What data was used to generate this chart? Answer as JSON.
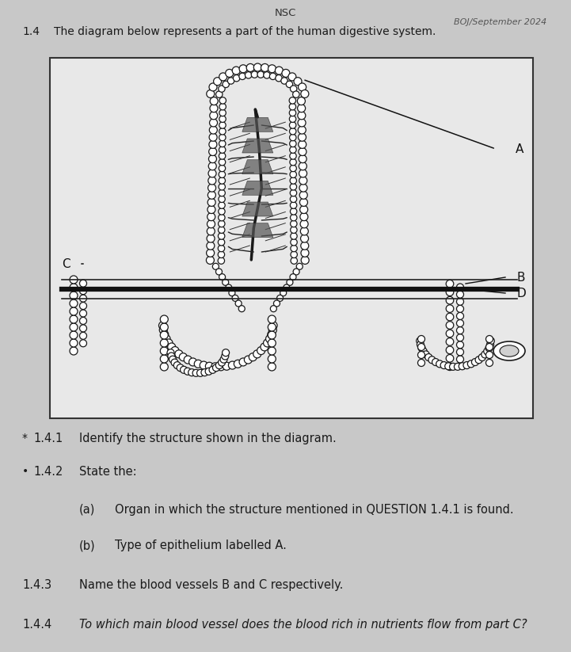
{
  "background_color": "#c8c8c8",
  "header_nsc": "NSC",
  "header_boj": "BOJ/September 2024",
  "intro_number": "1.4",
  "intro_text": "The diagram below represents a part of the human digestive system.",
  "q141_number": "1.4.1",
  "q141_bullet": "*",
  "q141_text": "Identify the structure shown in the diagram.",
  "q142_number": "1.4.2",
  "q142_bullet": "•",
  "q142_text": "State the:",
  "q142a_label": "(a)",
  "q142a_text": "Organ in which the structure mentioned in QUESTION 1.4.1 is found.",
  "q142b_label": "(b)",
  "q142b_text": "Type of epithelium labelled A.",
  "q143_number": "1.4.3",
  "q143_text": "Name the blood vessels B and C respectively.",
  "q144_number": "1.4.4",
  "q144_text": "To which main blood vessel does the blood rich in nutrients flow from part C?",
  "label_A": "A",
  "label_B": "B",
  "label_C": "C",
  "label_D": "D"
}
